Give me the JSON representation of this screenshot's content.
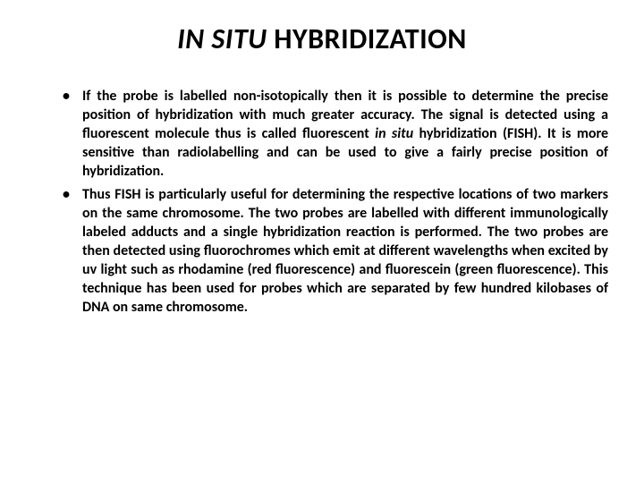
{
  "title_italic": "IN SITU",
  "title_rest": " HYBRIDIZATION",
  "bullets": [
    {
      "pre": "If the probe is labelled non-isotopically then it is possible to determine the precise position of hybridization with much greater accuracy. The signal is detected using a fluorescent molecule thus is called fluorescent ",
      "italic": "in situ",
      "post": " hybridization (FISH). It is more sensitive than radiolabelling and can be used to give a fairly precise position of hybridization."
    },
    {
      "pre": "Thus FISH is particularly useful for determining the respective locations of two markers on the same chromosome. The two probes are labelled with different immunologically labeled adducts and a single hybridization reaction is performed. The two probes are then detected using fluorochromes which emit at different wavelengths when excited by uv light such as rhodamine (red fluorescence) and fluorescein (green fluorescence). This technique has been used for probes which are separated by few hundred kilobases of DNA on same chromosome.",
      "italic": "",
      "post": ""
    }
  ],
  "colors": {
    "background": "#ffffff",
    "text": "#000000"
  },
  "typography": {
    "title_fontsize": 32,
    "body_fontsize": 16,
    "font_family": "Calibri",
    "body_weight": 700
  }
}
